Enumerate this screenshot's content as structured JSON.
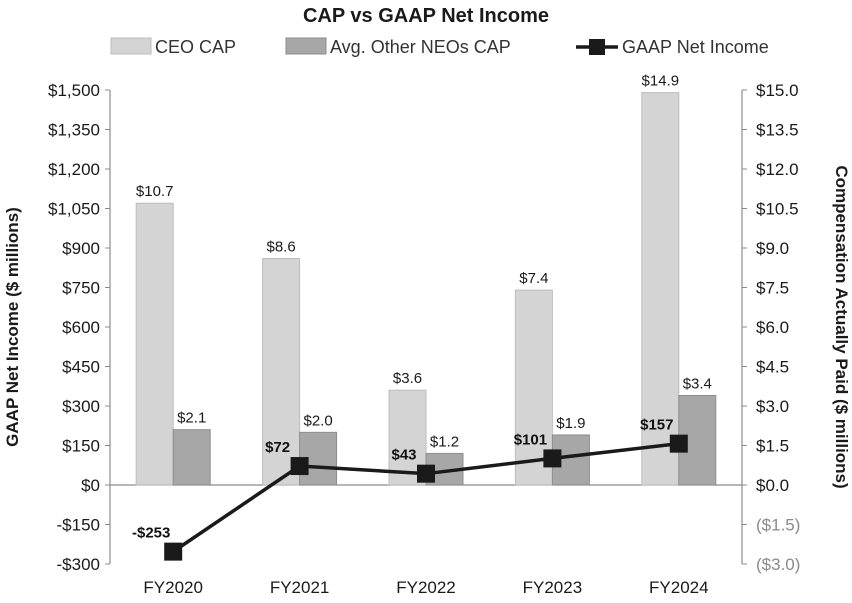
{
  "chart_data": {
    "type": "bar",
    "title": "CAP vs GAAP Net Income",
    "categories": [
      "FY2020",
      "FY2021",
      "FY2022",
      "FY2023",
      "FY2024"
    ],
    "series": [
      {
        "name": "CEO CAP",
        "kind": "bar",
        "axis": "right",
        "color": "#d4d4d4",
        "values": [
          10.7,
          8.6,
          3.6,
          7.4,
          14.9
        ],
        "labels": [
          "$10.7",
          "$8.6",
          "$3.6",
          "$7.4",
          "$14.9"
        ]
      },
      {
        "name": "Avg. Other NEOs CAP",
        "kind": "bar",
        "axis": "right",
        "color": "#a7a7a7",
        "values": [
          2.1,
          2.0,
          1.2,
          1.9,
          3.4
        ],
        "labels": [
          "$2.1",
          "$2.0",
          "$1.2",
          "$1.9",
          "$3.4"
        ]
      },
      {
        "name": "GAAP Net Income",
        "kind": "line",
        "axis": "left",
        "color": "#1a1a1a",
        "values": [
          -253,
          72,
          43,
          101,
          157
        ],
        "labels": [
          "-$253",
          "$72",
          "$43",
          "$101",
          "$157"
        ]
      }
    ],
    "left_axis": {
      "label": "GAAP Net Income ($ millions)",
      "ylim": [
        -300,
        1500
      ],
      "ticks": [
        -300,
        -150,
        0,
        150,
        300,
        450,
        600,
        750,
        900,
        1050,
        1200,
        1350,
        1500
      ],
      "tick_labels": [
        "-$300",
        "-$150",
        "$0",
        "$150",
        "$300",
        "$450",
        "$600",
        "$750",
        "$900",
        "$1,050",
        "$1,200",
        "$1,350",
        "$1,500"
      ]
    },
    "right_axis": {
      "label": "Compensation Actually Paid ($ millions)",
      "ylim": [
        -3.0,
        15.0
      ],
      "ticks": [
        -3.0,
        -1.5,
        0,
        1.5,
        3.0,
        4.5,
        6.0,
        7.5,
        9.0,
        10.5,
        12.0,
        13.5,
        15.0
      ],
      "tick_labels": [
        "($3.0)",
        "($1.5)",
        "$0.0",
        "$1.5",
        "$3.0",
        "$4.5",
        "$6.0",
        "$7.5",
        "$9.0",
        "$10.5",
        "$12.0",
        "$13.5",
        "$15.0"
      ]
    },
    "grid": false,
    "legend": "top-center"
  }
}
